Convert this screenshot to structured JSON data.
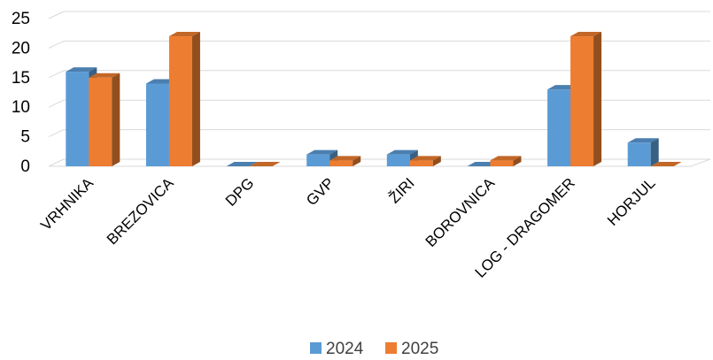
{
  "chart_data": {
    "type": "bar",
    "title": "",
    "xlabel": "",
    "ylabel": "",
    "categories": [
      "VRHNIKA",
      "BREZOVICA",
      "DPG",
      "GVP",
      "ŽIRI",
      "BOROVNICA",
      "LOG - DRAGOMER",
      "HORJUL"
    ],
    "series": [
      {
        "name": "2024",
        "color": "#5B9BD5",
        "values": [
          16,
          14,
          0,
          2,
          2,
          0,
          13,
          4
        ]
      },
      {
        "name": "2025",
        "color": "#ED7D31",
        "values": [
          15,
          22,
          0,
          1,
          1,
          1,
          22,
          0
        ]
      }
    ],
    "ylim": [
      0,
      25
    ],
    "yticks": [
      0,
      5,
      10,
      15,
      20,
      25
    ],
    "grid": true,
    "legend_position": "bottom"
  }
}
